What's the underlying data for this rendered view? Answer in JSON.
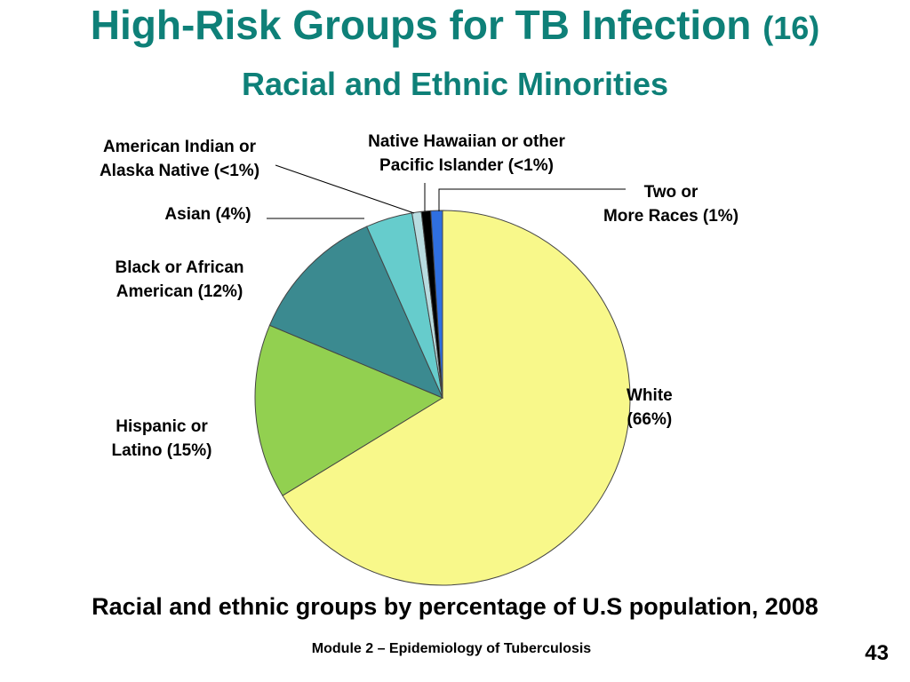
{
  "slide": {
    "title": "High-Risk Groups for TB Infection",
    "title_ref": "(16)",
    "subtitle": "Racial and Ethnic Minorities",
    "caption": "Racial and ethnic groups by percentage of U.S population, 2008",
    "footer": "Module 2 – Epidemiology of Tuberculosis",
    "page_number": "43"
  },
  "chart_data": {
    "type": "pie",
    "slices": [
      {
        "name": "White",
        "value": 66,
        "color": "#f8f88a",
        "label_lines": [
          "White",
          "(66%)"
        ]
      },
      {
        "name": "Hispanic or Latino",
        "value": 15,
        "color": "#92d050",
        "label_lines": [
          "Hispanic or",
          "Latino (15%)"
        ]
      },
      {
        "name": "Black or African American",
        "value": 12,
        "color": "#3b8a90",
        "label_lines": [
          "Black or African",
          "American (12%)"
        ]
      },
      {
        "name": "Asian",
        "value": 4,
        "color": "#66cccc",
        "label_lines": [
          "Asian (4%)"
        ]
      },
      {
        "name": "American Indian or Alaska Native",
        "value": 0.8,
        "color": "#b8dce0",
        "label_lines": [
          "American Indian or",
          "Alaska Native (<1%)"
        ]
      },
      {
        "name": "Native Hawaiian or other Pacific Islander",
        "value": 0.8,
        "color": "#000000",
        "label_lines": [
          "Native Hawaiian or other",
          "Pacific Islander (<1%)"
        ]
      },
      {
        "name": "Two or More Races",
        "value": 1,
        "color": "#2f6fe0",
        "label_lines": [
          "Two or",
          "More Races (1%)"
        ]
      }
    ]
  }
}
